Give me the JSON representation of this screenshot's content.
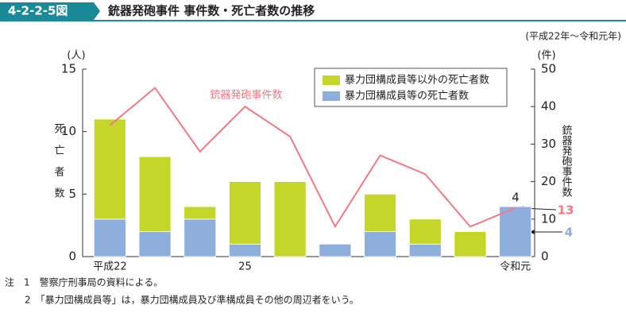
{
  "chart_data": {
    "type": "stacked-bar-line",
    "figure_number": "4-2-2-5図",
    "title": "銃器発砲事件 事件数・死亡者数の推移",
    "subtitle": "(平成22年～令和元年)",
    "y_unit": "(人)",
    "y2_unit": "(件)",
    "ylabel": "死亡者数",
    "y2label": "銃器発砲事件数",
    "categories": [
      "平成22",
      null,
      null,
      "25",
      null,
      null,
      null,
      null,
      null,
      "令和元"
    ],
    "ylim": [
      0,
      15
    ],
    "yticks": [
      0,
      5,
      10,
      15
    ],
    "y2lim": [
      0,
      50
    ],
    "y2ticks": [
      0,
      10,
      20,
      30,
      40,
      50
    ],
    "series": [
      {
        "name": "暴力団構成員等の死亡者数",
        "color": "#8eaedc",
        "values": [
          3,
          2,
          3,
          1,
          0,
          1,
          2,
          1,
          0,
          4
        ]
      },
      {
        "name": "暴力団構成員等以外の死亡者数",
        "color": "#c5d62b",
        "values": [
          8,
          6,
          1,
          5,
          6,
          0,
          3,
          2,
          2,
          0
        ]
      },
      {
        "name": "銃器発砲事件数",
        "color": "#ee7a86",
        "axis": "y2",
        "values": [
          35,
          45,
          28,
          40,
          32,
          8,
          27,
          22,
          8,
          13
        ]
      }
    ],
    "notes": [
      "注　1　警察庁刑事局の資料による。",
      "2　「暴力団構成員等」は，暴力団構成員及び準構成員その他の周辺者をいう。"
    ]
  }
}
